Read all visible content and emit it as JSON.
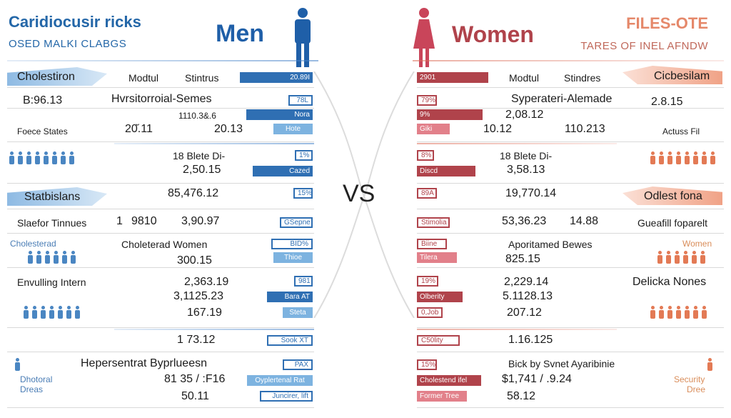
{
  "header": {
    "title_left": "Caridiocusir ricks",
    "subtitle_left": "OSED MALKI CLABGS",
    "men_label": "Men",
    "women_label": "Women",
    "title_right": "FILES-OTE",
    "subtitle_right": "TARES OF INEL AFNDW",
    "vs_label": "VS"
  },
  "colors": {
    "men_primary": "#2f6fb3",
    "men_light": "#7db3e0",
    "women_primary": "#b0434b",
    "women_light": "#e2808a",
    "accent_orange": "#e5886a"
  },
  "men": {
    "col_head_1": "Modtul",
    "col_head_2": "Stintrus",
    "side_cholestiron": "Cholestiron",
    "side_b_value": "B:96.13",
    "side_foece": "Foece States",
    "side_statbislans": "Statbislans",
    "side_slaefor": "Slaefor Tinnues",
    "side_cholesterad_label": "Cholesterad",
    "side_envulting": "Envulling Intern",
    "side_dhotoral": "Dhotoral",
    "side_dreas": "Dreas",
    "texts": [
      "Hvrsitorroial-Semes",
      "1110.3&.6",
      "20̆.11",
      "20.13",
      "18 Blete Di-",
      "2,50.15",
      "85,476.12",
      "1",
      "9810",
      "3,90.97",
      "Choleterad Women",
      "300.15",
      "2,363.19",
      "3,1125.23",
      "167.19",
      "1 73.12",
      "Hepersentrat Byprlueesn",
      "81 35 / :F16",
      "50.11"
    ],
    "bars": [
      "20.89I",
      "78L",
      "Nora",
      "Hote",
      "1%",
      "Cazed",
      "15%",
      "GSepne",
      "BID%",
      "Thioe",
      "981",
      "Bara AT",
      "Steta",
      "Sook XT",
      "PAX",
      "Oyplertenal Rat",
      "Juncirer, lift"
    ]
  },
  "women": {
    "col_head_1": "Modtul",
    "col_head_2": "Stindres",
    "side_cicbesilam": "Cicbesilam",
    "side_value": "2.8.15",
    "side_actuss": "Actuss Fil",
    "side_odlest": "Odlest fona",
    "side_gueafill": "Gueafill foparelt",
    "side_women_label": "Women",
    "side_delicka": "Delicka Nones",
    "side_security": "Security",
    "side_dree": "Dree",
    "texts": [
      "Syperateri-Alemade",
      "2,08.12",
      "10.12",
      "110.213",
      "18 Blete Di-",
      "3,58.13",
      "19,770.14",
      "53,36.23",
      "14.88",
      "Aporitamed Bewes",
      "825.15",
      "2,229.14",
      "5.1128.13",
      "207.12",
      "1.16.125",
      "Bick by Svnet Ayaribinie",
      "$1,741 / .9.24",
      "58.12"
    ],
    "bars": [
      "2901",
      "79%",
      "9%",
      "Giki",
      "8%",
      "Discd",
      "89A",
      "Stimolia",
      "Biine",
      "Tilera",
      "19%",
      "Olberity",
      "0,Job",
      "C50lity",
      "15%",
      "Cholestend ifel",
      "Former Tree"
    ]
  }
}
